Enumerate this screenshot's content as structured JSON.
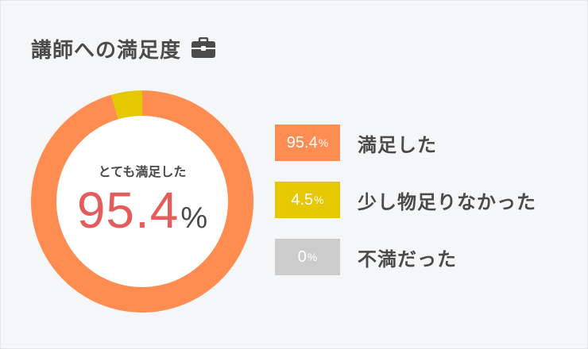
{
  "header": {
    "title": "講師への満足度",
    "icon": "briefcase-icon"
  },
  "chart_data": {
    "type": "pie",
    "variant": "donut",
    "center_label": "とても満足した",
    "center_value": "95.4",
    "center_unit": "%",
    "unit": "%",
    "categories": [
      "満足した",
      "少し物足りなかった",
      "不満だった"
    ],
    "values": [
      95.4,
      4.5,
      0
    ],
    "labels": [
      "95.4",
      "4.5",
      "0"
    ],
    "colors": [
      "#ff8c50",
      "#e6c800",
      "#cccccc"
    ]
  }
}
